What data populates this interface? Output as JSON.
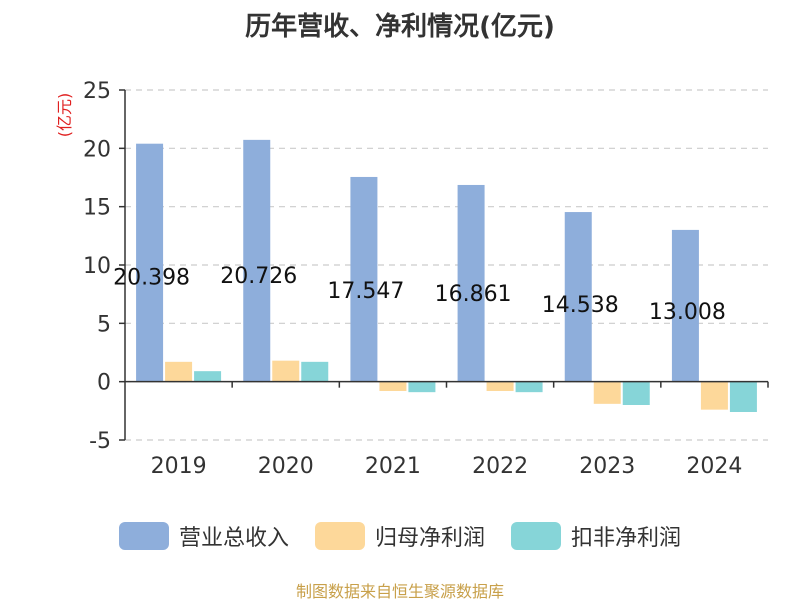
{
  "chart_data": {
    "type": "bar",
    "title": "历年营收、净利情况(亿元)",
    "ylabel": "(亿元)",
    "xlabel": "",
    "categories": [
      "2019",
      "2020",
      "2021",
      "2022",
      "2023",
      "2024"
    ],
    "ylim": [
      -5,
      25
    ],
    "yticks": [
      -5,
      0,
      5,
      10,
      15,
      20,
      25
    ],
    "grid": true,
    "legend_position": "bottom",
    "series": [
      {
        "name": "营业总收入",
        "color": "#8eaedb",
        "values": [
          20.398,
          20.726,
          17.547,
          16.861,
          14.538,
          13.008
        ],
        "data_labels": [
          "20.398",
          "20.726",
          "17.547",
          "16.861",
          "14.538",
          "13.008"
        ]
      },
      {
        "name": "归母净利润",
        "color": "#fdd89a",
        "values": [
          1.7,
          1.8,
          -0.8,
          -0.8,
          -1.9,
          -2.4
        ]
      },
      {
        "name": "扣非净利润",
        "color": "#86d5d8",
        "values": [
          0.9,
          1.7,
          -0.9,
          -0.9,
          -2.0,
          -2.6
        ]
      }
    ]
  },
  "source_note": "制图数据来自恒生聚源数据库",
  "colors": {
    "axis": "#333333",
    "grid": "#cccccc",
    "ylabel": "#e02020",
    "source": "#c8a04a"
  }
}
